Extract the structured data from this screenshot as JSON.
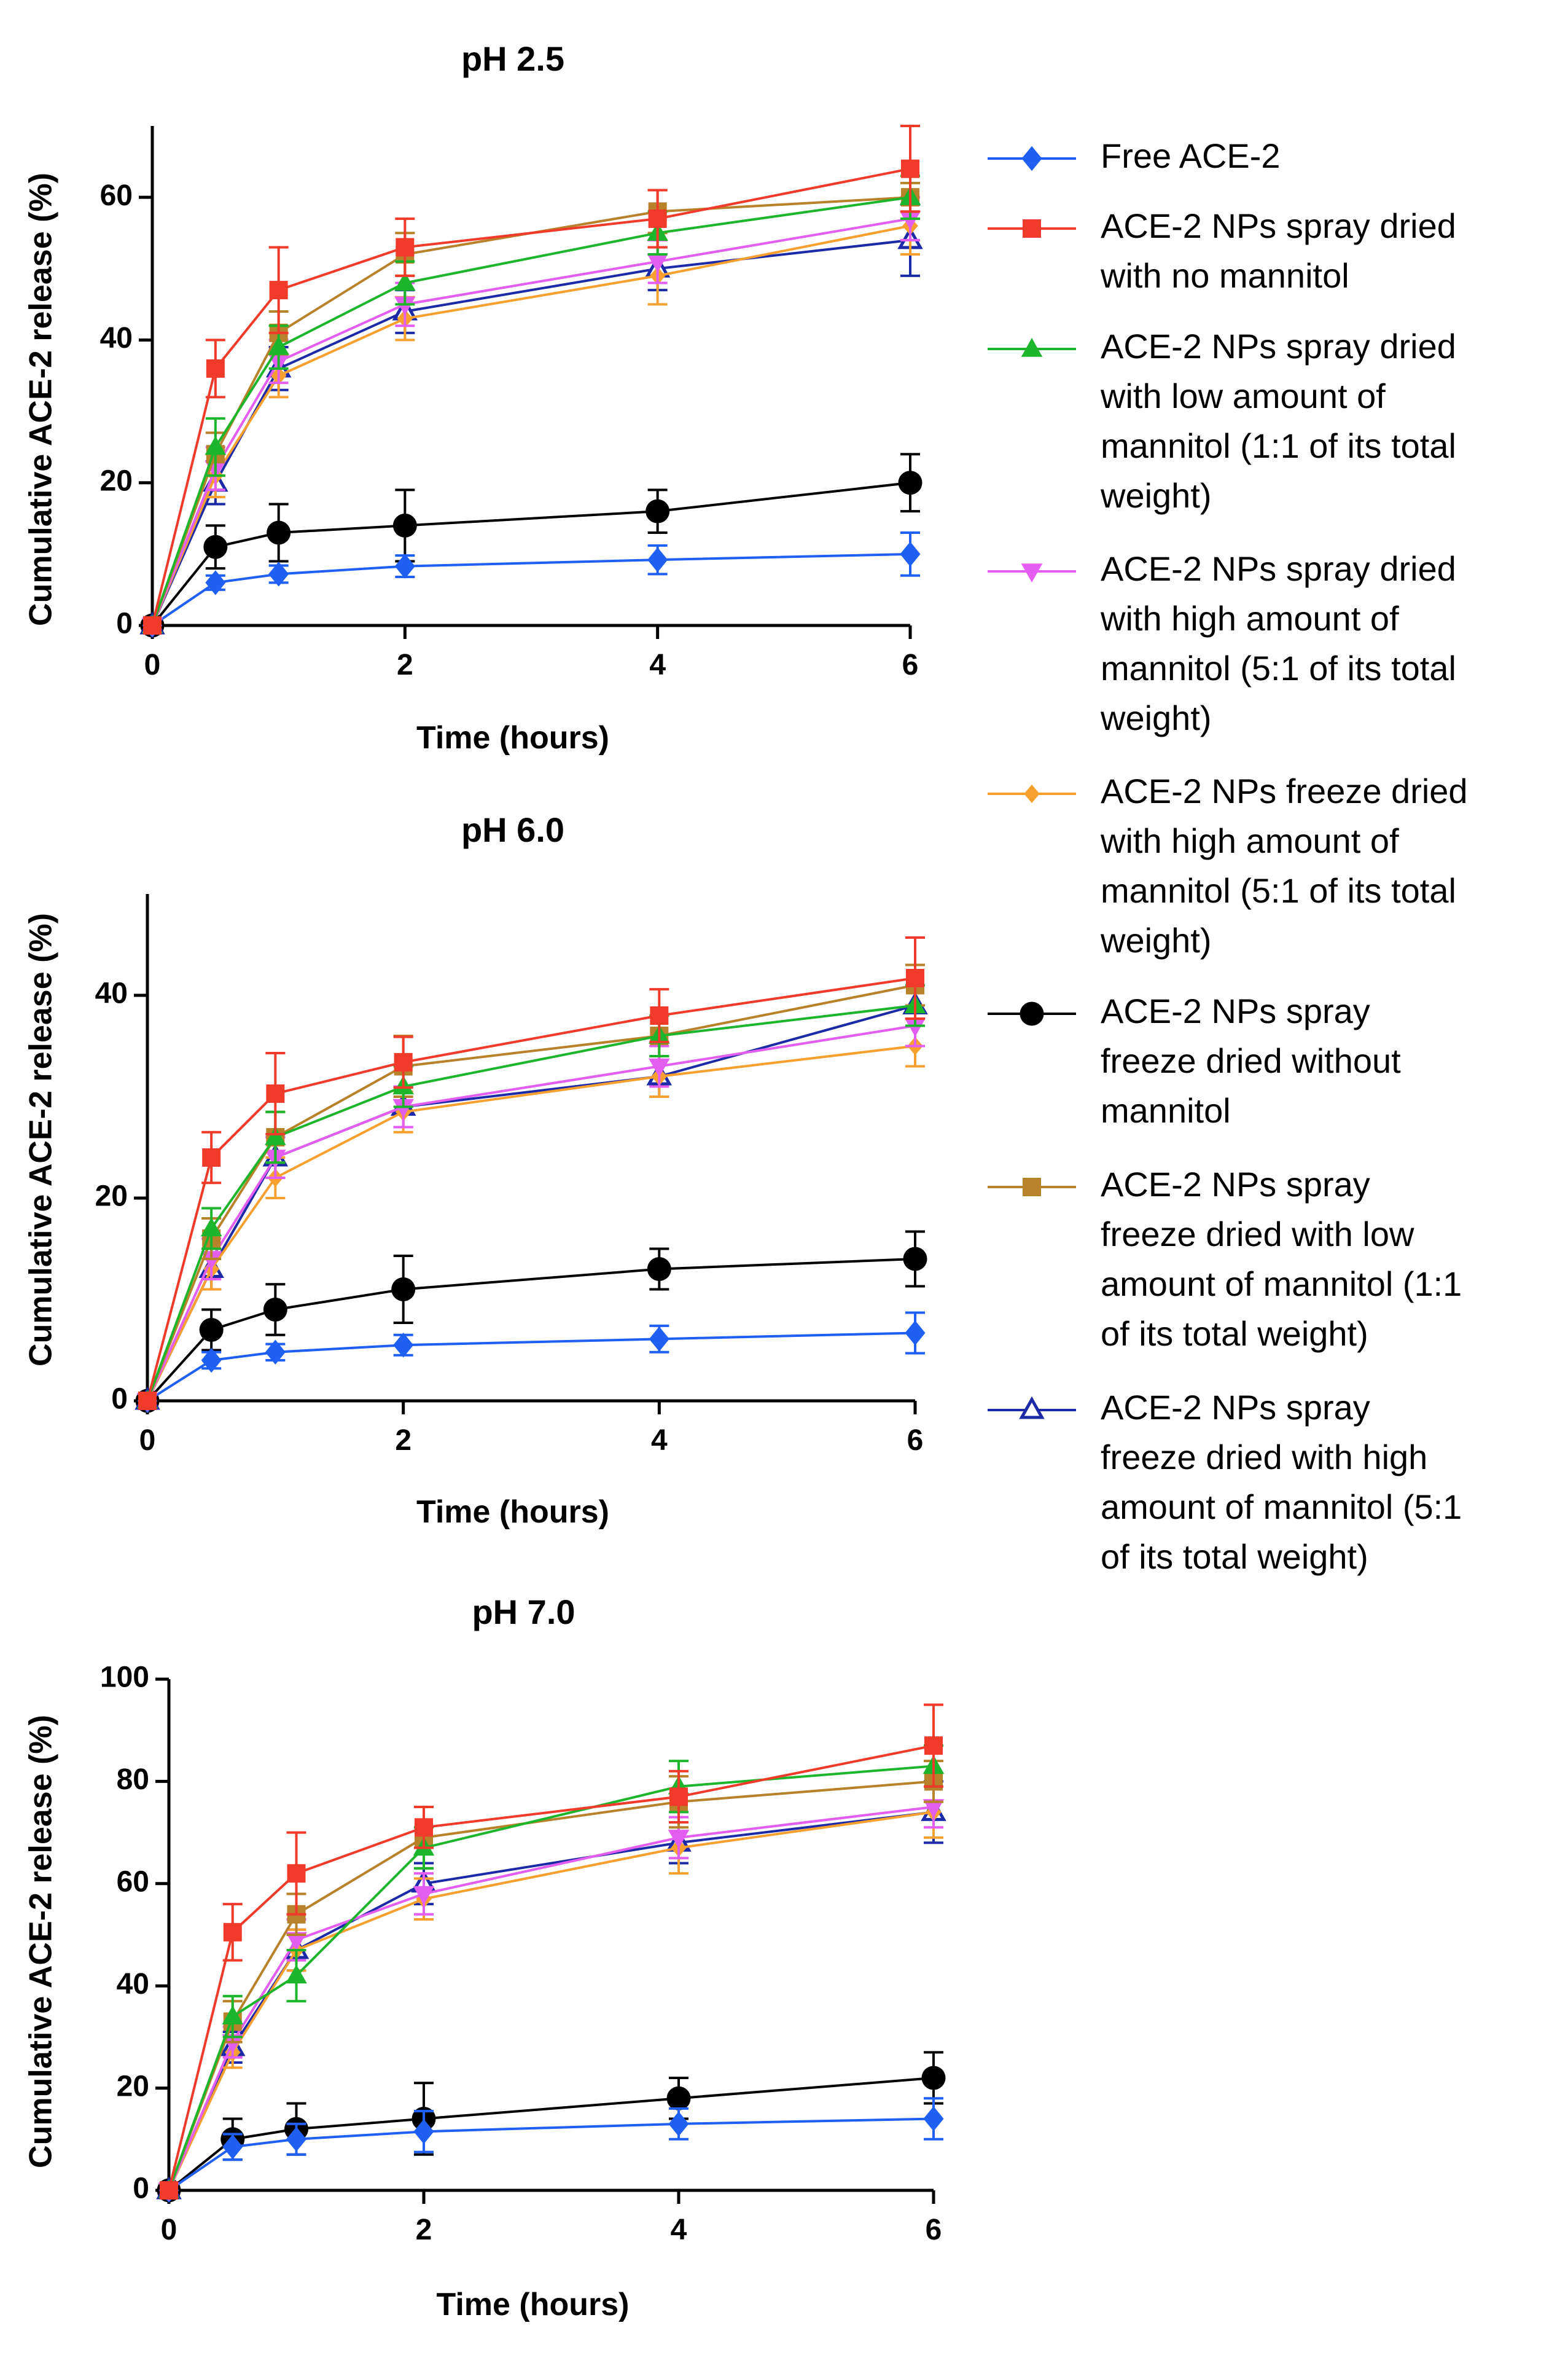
{
  "legend": [
    {
      "key": "free",
      "lines": [
        "Free ACE-2"
      ],
      "color": "#1f5ff2",
      "marker": "diamond"
    },
    {
      "key": "sd_none",
      "lines": [
        "ACE-2 NPs spray dried",
        "with no mannitol"
      ],
      "color": "#f03a2a",
      "marker": "square"
    },
    {
      "key": "sd_low",
      "lines": [
        "ACE-2 NPs spray dried",
        "with low amount of",
        "mannitol (1:1 of its total",
        "weight)"
      ],
      "color": "#1db52b",
      "marker": "triangle"
    },
    {
      "key": "sd_high",
      "lines": [
        "ACE-2 NPs spray dried",
        "with high amount of",
        "mannitol (5:1 of its total",
        "weight)"
      ],
      "color": "#e35df0",
      "marker": "triangle-down"
    },
    {
      "key": "fd_high",
      "lines": [
        "ACE-2 NPs freeze dried",
        "with high amount of",
        "mannitol (5:1 of its total",
        "weight)"
      ],
      "color": "#f7a030",
      "marker": "small-diamond"
    },
    {
      "key": "sfd_none",
      "lines": [
        "ACE-2 NPs spray",
        "freeze dried without",
        "mannitol"
      ],
      "color": "#000000",
      "marker": "circle"
    },
    {
      "key": "sfd_low",
      "lines": [
        "ACE-2 NPs spray",
        "freeze dried with low",
        "amount of mannitol (1:1",
        "of its total weight)"
      ],
      "color": "#b8822a",
      "marker": "square"
    },
    {
      "key": "sfd_high",
      "lines": [
        "ACE-2 NPs spray",
        "freeze dried with high",
        "amount of mannitol (5:1",
        "of its total weight)"
      ],
      "color": "#1d2aa8",
      "marker": "open-triangle"
    }
  ],
  "chart_data": [
    {
      "type": "line",
      "title": "pH 2.5",
      "xlabel": "Time (hours)",
      "ylabel": "Cumulative ACE-2 release (%)",
      "x": [
        0,
        0.5,
        1,
        2,
        4,
        6
      ],
      "xticks": [
        0,
        2,
        4,
        6
      ],
      "xlim": [
        0,
        6
      ],
      "yticks": [
        0,
        20,
        40,
        60
      ],
      "ylim": [
        0,
        70
      ],
      "series": [
        {
          "key": "free",
          "values": [
            0,
            6,
            7.2,
            8.3,
            9.2,
            10
          ],
          "err": [
            0,
            1,
            1.2,
            1.5,
            2,
            3
          ]
        },
        {
          "key": "sd_none",
          "values": [
            0,
            36,
            47,
            53,
            57,
            64
          ],
          "err": [
            0,
            4,
            6,
            4,
            4,
            6
          ]
        },
        {
          "key": "sd_low",
          "values": [
            0,
            25,
            39,
            48,
            55,
            60
          ],
          "err": [
            0,
            4,
            3,
            3,
            3,
            3
          ]
        },
        {
          "key": "sd_high",
          "values": [
            0,
            22,
            37,
            45,
            51,
            57
          ],
          "err": [
            0,
            3,
            3,
            3,
            3,
            3
          ]
        },
        {
          "key": "fd_high",
          "values": [
            0,
            21,
            35,
            43,
            49,
            56
          ],
          "err": [
            0,
            3,
            3,
            3,
            4,
            4
          ]
        },
        {
          "key": "sfd_none",
          "values": [
            0,
            11,
            13,
            14,
            16,
            20
          ],
          "err": [
            0,
            3,
            4,
            5,
            3,
            4
          ]
        },
        {
          "key": "sfd_low",
          "values": [
            0,
            24,
            41,
            52,
            58,
            60
          ],
          "err": [
            0,
            3,
            3,
            3,
            3,
            2
          ]
        },
        {
          "key": "sfd_high",
          "values": [
            0,
            20,
            36,
            44,
            50,
            54
          ],
          "err": [
            0,
            3,
            3,
            3,
            3,
            5
          ]
        }
      ]
    },
    {
      "type": "line",
      "title": "pH 6.0",
      "xlabel": "Time (hours)",
      "ylabel": "Cumulative ACE-2 release (%)",
      "x": [
        0,
        0.5,
        1,
        2,
        4,
        6
      ],
      "xticks": [
        0,
        2,
        4,
        6
      ],
      "xlim": [
        0,
        6
      ],
      "yticks": [
        0,
        20,
        40
      ],
      "ylim": [
        0,
        50
      ],
      "series": [
        {
          "key": "free",
          "values": [
            0,
            4,
            4.8,
            5.5,
            6.1,
            6.7
          ],
          "err": [
            0,
            0.8,
            0.8,
            1,
            1.3,
            2
          ]
        },
        {
          "key": "sd_none",
          "values": [
            0,
            24,
            30.3,
            33.4,
            38,
            41.7
          ],
          "err": [
            0,
            2.5,
            4,
            2.5,
            2.6,
            4
          ]
        },
        {
          "key": "sd_low",
          "values": [
            0,
            17,
            26,
            31,
            36,
            39
          ],
          "err": [
            0,
            2,
            2.5,
            2,
            2,
            2
          ]
        },
        {
          "key": "sd_high",
          "values": [
            0,
            14,
            24,
            29,
            33,
            37
          ],
          "err": [
            0,
            2,
            2,
            2,
            2,
            2
          ]
        },
        {
          "key": "fd_high",
          "values": [
            0,
            13,
            22,
            28.5,
            32,
            35
          ],
          "err": [
            0,
            2,
            2,
            2,
            2,
            2
          ]
        },
        {
          "key": "sfd_none",
          "values": [
            0,
            7,
            9,
            11,
            13,
            14
          ],
          "err": [
            0,
            2,
            2.5,
            3.3,
            2,
            2.7
          ]
        },
        {
          "key": "sfd_low",
          "values": [
            0,
            16,
            26,
            33,
            36,
            41
          ],
          "err": [
            0,
            2,
            2.5,
            3,
            2,
            2
          ]
        },
        {
          "key": "sfd_high",
          "values": [
            0,
            13,
            24,
            29,
            32,
            39
          ],
          "err": [
            0,
            2,
            2,
            2,
            2,
            2
          ]
        }
      ]
    },
    {
      "type": "line",
      "title": "pH 7.0",
      "xlabel": "Time (hours)",
      "ylabel": "Cumulative ACE-2 release (%)",
      "x": [
        0,
        0.5,
        1,
        2,
        4,
        6
      ],
      "xticks": [
        0,
        2,
        4,
        6
      ],
      "xlim": [
        0,
        6
      ],
      "yticks": [
        0,
        20,
        40,
        60,
        80,
        100
      ],
      "ylim": [
        0,
        100
      ],
      "series": [
        {
          "key": "free",
          "values": [
            0,
            8.5,
            10,
            11.5,
            13,
            14
          ],
          "err": [
            0,
            2.5,
            3,
            4,
            3,
            4
          ]
        },
        {
          "key": "sd_none",
          "values": [
            0,
            50.5,
            62,
            71,
            77,
            87
          ],
          "err": [
            0,
            5.5,
            8,
            4,
            5,
            8
          ]
        },
        {
          "key": "sd_low",
          "values": [
            0,
            34,
            42,
            67,
            79,
            83
          ],
          "err": [
            0,
            4,
            5,
            4,
            5,
            4
          ]
        },
        {
          "key": "sd_high",
          "values": [
            0,
            29,
            49,
            58,
            69,
            75
          ],
          "err": [
            0,
            3,
            4,
            4,
            4,
            4
          ]
        },
        {
          "key": "fd_high",
          "values": [
            0,
            27,
            47,
            57,
            67,
            74
          ],
          "err": [
            0,
            3,
            4,
            4,
            5,
            5
          ]
        },
        {
          "key": "sfd_none",
          "values": [
            0,
            10,
            12,
            14,
            18,
            22
          ],
          "err": [
            0,
            4,
            5,
            7,
            4,
            5
          ]
        },
        {
          "key": "sfd_low",
          "values": [
            0,
            33,
            54,
            69,
            76,
            80
          ],
          "err": [
            0,
            4,
            4,
            6,
            5,
            4
          ]
        },
        {
          "key": "sfd_high",
          "values": [
            0,
            28,
            47,
            60,
            68,
            74
          ],
          "err": [
            0,
            3,
            4,
            4,
            4,
            6
          ]
        }
      ]
    }
  ]
}
